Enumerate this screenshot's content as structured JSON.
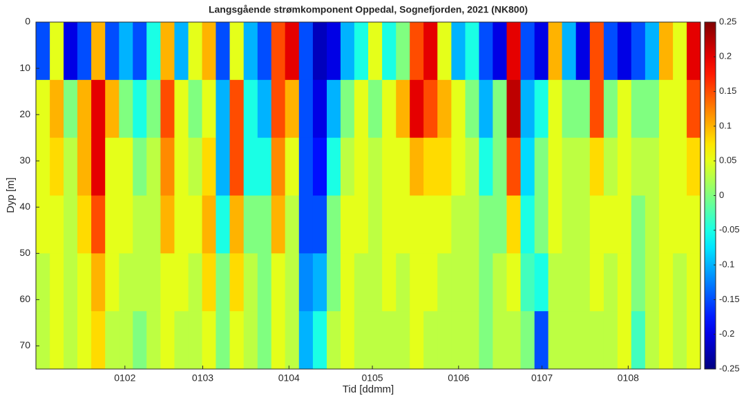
{
  "chart_data": {
    "type": "heatmap",
    "title": "Langsgående strømkomponent Oppedal, Sognefjorden, 2021 (NK800)",
    "xlabel": "Tid [ddmm]",
    "ylabel": "Dyp [m]",
    "x": [
      2.5,
      7.5,
      12.4,
      17.4,
      22.4,
      27.4,
      32.4,
      37.3,
      42.3,
      47.3,
      52.3,
      57.3,
      62.2,
      67.2,
      72.2,
      77.2,
      82.2,
      87.1,
      92.1,
      97.1,
      102.1,
      107.1,
      112.0,
      117.0,
      122.0,
      127.0,
      132.0,
      136.9,
      141.9,
      146.9,
      151.9,
      156.9,
      161.8,
      166.8,
      171.8,
      176.8,
      181.8,
      186.7,
      191.7,
      196.7,
      201.7,
      206.7,
      211.6,
      216.6,
      221.6,
      226.6,
      231.6,
      236.5
    ],
    "y": [
      6.25,
      18.75,
      31.25,
      43.75,
      56.25,
      68.75
    ],
    "values": [
      [
        -0.15,
        0.05,
        -0.2,
        -0.15,
        0.1,
        -0.15,
        -0.1,
        -0.15,
        -0.05,
        0.1,
        -0.1,
        0.05,
        0.1,
        -0.15,
        0.05,
        -0.1,
        -0.15,
        0.15,
        0.2,
        -0.15,
        -0.22,
        -0.2,
        -0.1,
        -0.05,
        0.05,
        -0.05,
        0.0,
        0.15,
        0.2,
        0.05,
        -0.1,
        -0.05,
        -0.15,
        -0.2,
        0.2,
        -0.15,
        -0.2,
        0.1,
        -0.1,
        -0.2,
        0.15,
        -0.15,
        -0.2,
        -0.15,
        -0.1,
        0.1,
        0.05,
        0.2
      ],
      [
        0.05,
        0.1,
        0.0,
        0.1,
        0.2,
        0.1,
        0.0,
        -0.05,
        0.0,
        0.15,
        0.05,
        0.0,
        0.05,
        -0.1,
        0.15,
        -0.05,
        -0.1,
        0.15,
        0.1,
        -0.15,
        -0.2,
        -0.1,
        0.0,
        0.05,
        0.0,
        0.05,
        0.1,
        0.2,
        0.15,
        0.1,
        0.05,
        0.0,
        -0.1,
        0.0,
        0.22,
        -0.1,
        -0.05,
        0.05,
        0.0,
        0.0,
        0.15,
        0.0,
        0.05,
        0.0,
        0.0,
        0.05,
        0.05,
        0.15
      ],
      [
        0.05,
        0.08,
        0.03,
        0.1,
        0.2,
        0.05,
        0.05,
        0.0,
        0.03,
        0.12,
        0.05,
        0.03,
        0.08,
        -0.1,
        0.15,
        -0.05,
        -0.05,
        0.12,
        0.05,
        -0.15,
        -0.18,
        -0.05,
        0.03,
        0.05,
        0.03,
        0.05,
        0.05,
        0.1,
        0.08,
        0.08,
        0.05,
        0.03,
        -0.05,
        0.0,
        0.15,
        -0.08,
        0.0,
        0.05,
        0.03,
        0.03,
        0.08,
        0.03,
        0.05,
        0.03,
        0.03,
        0.05,
        0.05,
        0.08
      ],
      [
        0.05,
        0.05,
        0.03,
        0.08,
        0.15,
        0.05,
        0.05,
        0.03,
        0.03,
        0.1,
        0.05,
        0.05,
        0.1,
        -0.05,
        0.1,
        0.0,
        0.0,
        0.1,
        0.03,
        -0.15,
        -0.15,
        0.0,
        0.05,
        0.05,
        0.03,
        0.05,
        0.05,
        0.05,
        0.05,
        0.05,
        0.03,
        0.03,
        0.0,
        0.0,
        0.08,
        -0.05,
        0.0,
        0.05,
        0.03,
        0.03,
        0.05,
        0.05,
        0.05,
        0.0,
        0.03,
        0.05,
        0.05,
        0.05
      ],
      [
        0.03,
        0.05,
        0.03,
        0.05,
        0.1,
        0.05,
        0.03,
        0.03,
        0.03,
        0.05,
        0.05,
        0.03,
        0.08,
        0.0,
        0.08,
        0.03,
        0.0,
        0.05,
        0.03,
        -0.12,
        -0.1,
        0.0,
        0.05,
        0.03,
        0.03,
        0.05,
        0.03,
        0.05,
        0.05,
        0.03,
        0.03,
        0.03,
        0.0,
        0.03,
        0.05,
        -0.03,
        -0.05,
        0.03,
        0.03,
        0.03,
        0.05,
        0.03,
        0.05,
        0.0,
        0.03,
        0.05,
        0.03,
        0.05
      ],
      [
        0.03,
        0.05,
        0.03,
        0.05,
        0.08,
        0.03,
        0.03,
        0.0,
        0.03,
        0.05,
        0.03,
        0.03,
        0.05,
        0.0,
        0.05,
        0.03,
        0.0,
        0.05,
        0.03,
        -0.1,
        -0.05,
        0.03,
        0.05,
        0.03,
        0.03,
        0.03,
        0.03,
        0.05,
        0.03,
        0.03,
        0.03,
        0.03,
        0.0,
        0.03,
        0.03,
        0.0,
        -0.15,
        0.03,
        0.03,
        0.03,
        0.03,
        0.03,
        0.05,
        -0.03,
        0.03,
        0.05,
        0.03,
        0.05
      ]
    ],
    "xlim": [
      0,
      239
    ],
    "xticks": [
      {
        "value": 32,
        "label": "0102"
      },
      {
        "value": 60,
        "label": "0103"
      },
      {
        "value": 91,
        "label": "0104"
      },
      {
        "value": 121,
        "label": "0105"
      },
      {
        "value": 152,
        "label": "0106"
      },
      {
        "value": 182,
        "label": "0107"
      },
      {
        "value": 213,
        "label": "0108"
      }
    ],
    "ylim": [
      0,
      75
    ],
    "y_reversed": true,
    "yticks": [
      0,
      10,
      20,
      30,
      40,
      50,
      60,
      70
    ],
    "colormap": "jet",
    "clim": [
      -0.25,
      0.25
    ],
    "cticks": [
      -0.25,
      -0.2,
      -0.15,
      -0.1,
      -0.05,
      0,
      0.05,
      0.1,
      0.15,
      0.2,
      0.25
    ]
  }
}
